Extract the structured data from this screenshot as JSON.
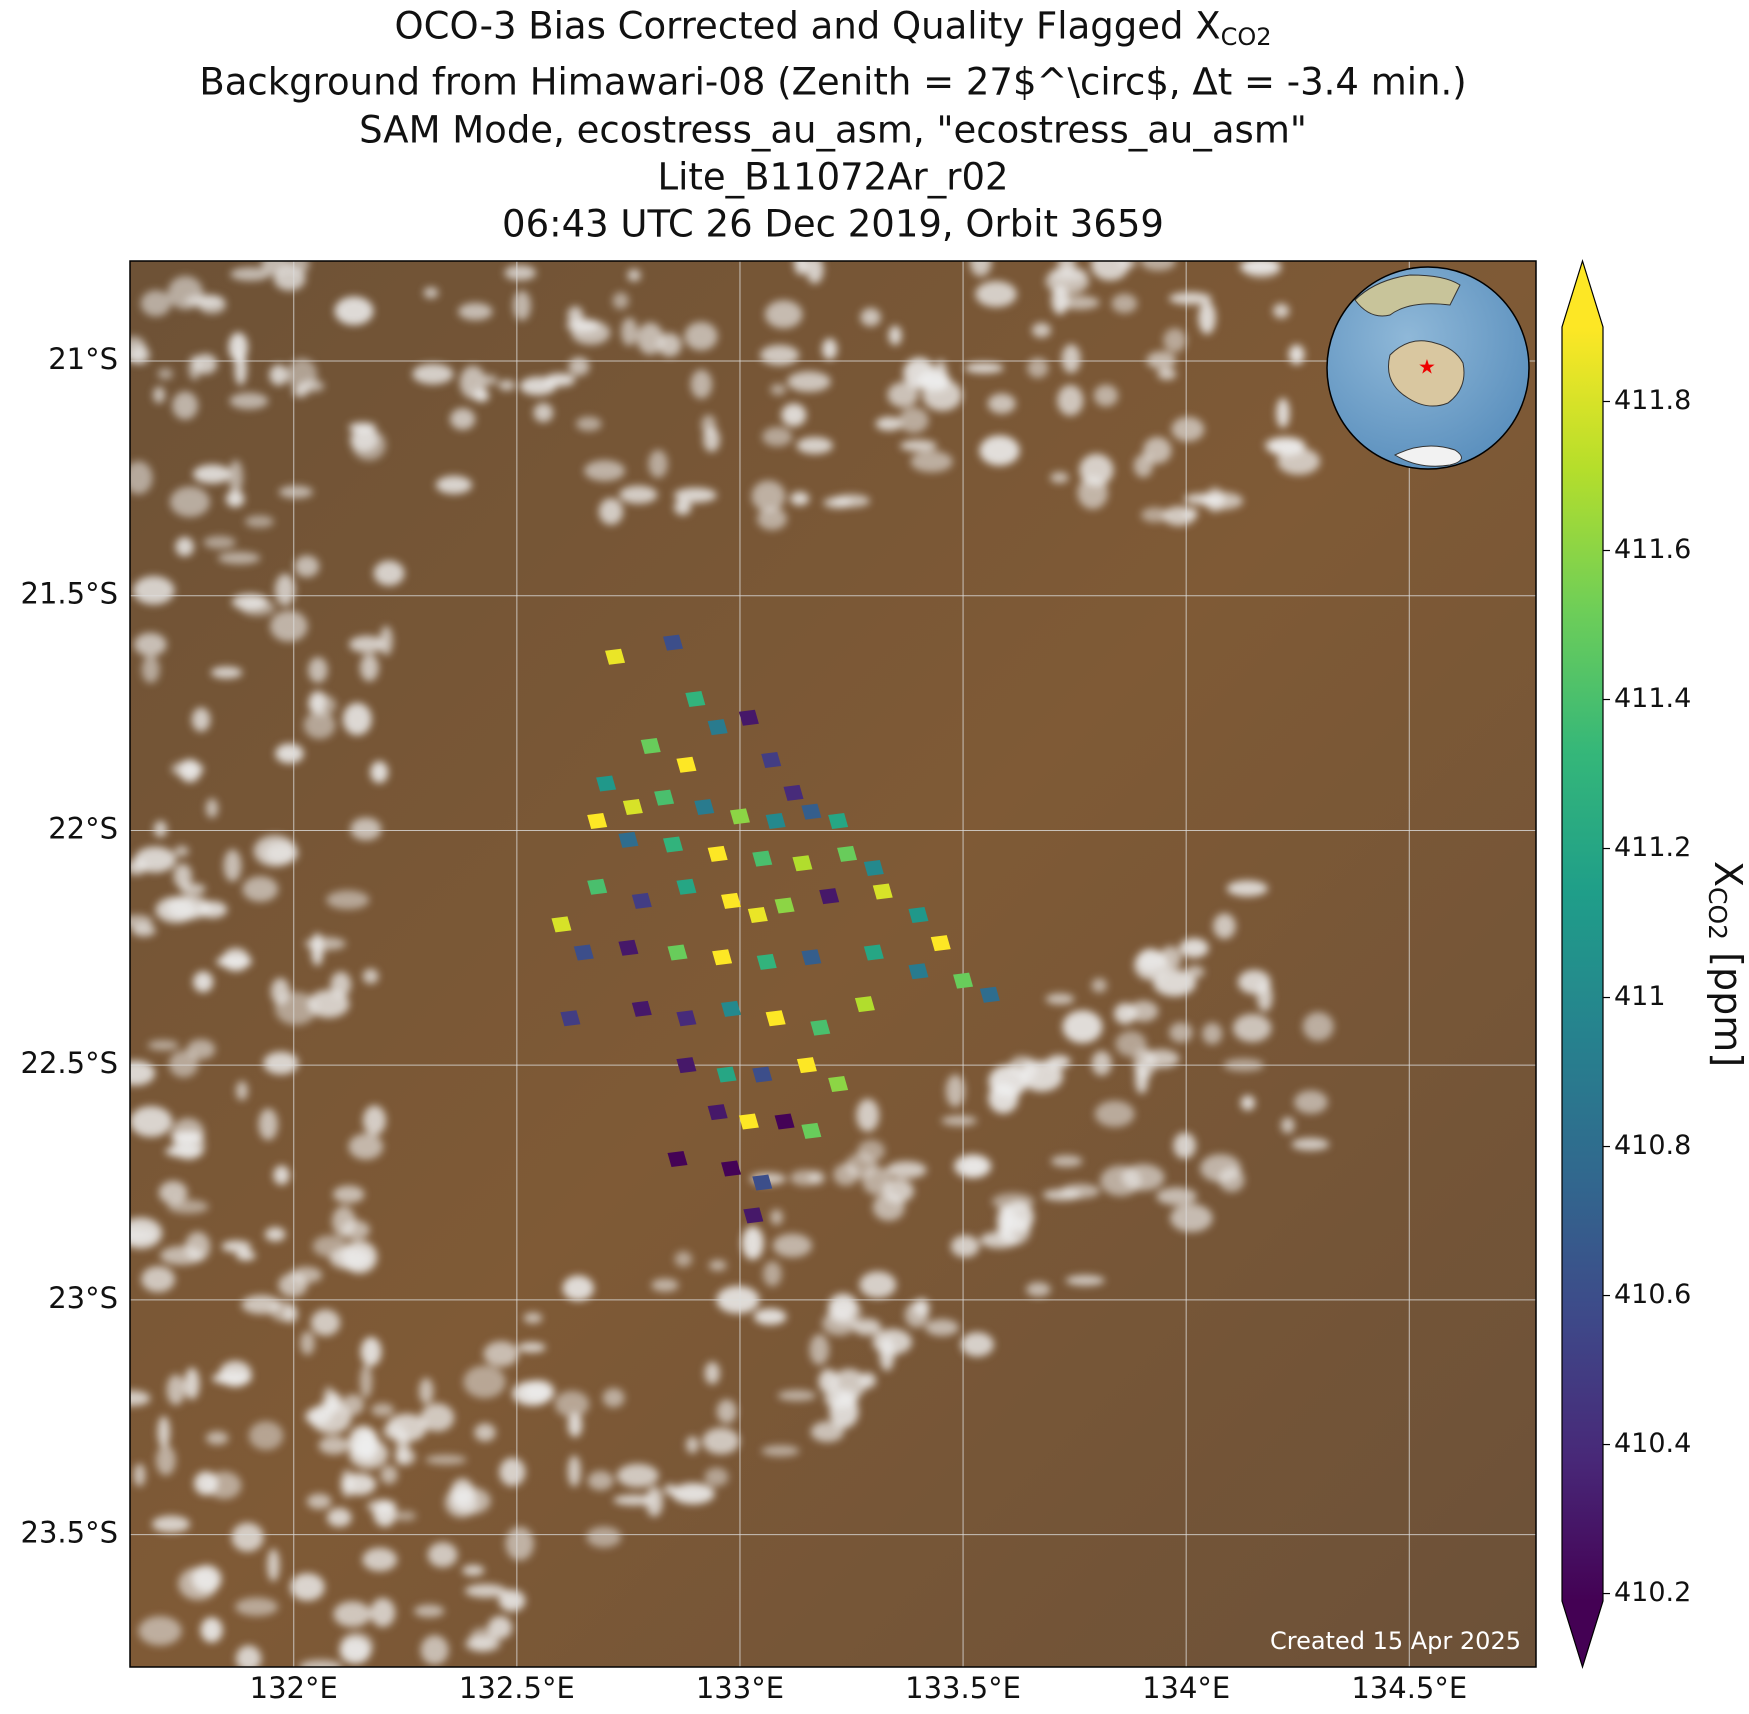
{
  "chart_data": {
    "type": "map",
    "title_lines": [
      "OCO-3 Bias Corrected and Quality Flagged X",
      "Background from Himawari-08 (Zenith = 27$^\\circ$, Δt = -3.4 min.)",
      "SAM Mode, ecostress_au_asm, \"ecostress_au_asm\"",
      "Lite_B11072Ar_r02",
      "06:43 UTC 26 Dec 2019, Orbit 3659"
    ],
    "title_subscript": "CO2",
    "xlim": [
      131.633,
      134.784
    ],
    "ylim": [
      -20.787,
      -23.782
    ],
    "xticks": [
      {
        "value": 132,
        "label": "132°E"
      },
      {
        "value": 132.5,
        "label": "132.5°E"
      },
      {
        "value": 133,
        "label": "133°E"
      },
      {
        "value": 133.5,
        "label": "133.5°E"
      },
      {
        "value": 134,
        "label": "134°E"
      },
      {
        "value": 134.5,
        "label": "134.5°E"
      }
    ],
    "yticks": [
      {
        "value": -21,
        "label": "21°S"
      },
      {
        "value": -21.5,
        "label": "21.5°S"
      },
      {
        "value": -22,
        "label": "22°S"
      },
      {
        "value": -22.5,
        "label": "22.5°S"
      },
      {
        "value": -23,
        "label": "23°S"
      },
      {
        "value": -23.5,
        "label": "23.5°S"
      }
    ],
    "grid": true,
    "colormap": "viridis",
    "clim": [
      410.19,
      411.9
    ],
    "cticks": [
      410.2,
      410.4,
      410.6,
      410.8,
      411.0,
      411.2,
      411.4,
      411.6,
      411.8
    ],
    "cbar_label": {
      "main": "X",
      "sub": "CO2",
      "unit": "[ppm]"
    },
    "credit": "Created 15 Apr 2025",
    "soundings": {
      "lon": [
        132.72,
        132.85,
        132.9,
        132.95,
        132.8,
        132.88,
        133.02,
        133.07,
        133.12,
        132.7,
        132.76,
        132.83,
        132.92,
        133.0,
        133.08,
        133.16,
        133.22,
        132.68,
        132.75,
        132.85,
        132.95,
        133.05,
        133.14,
        133.24,
        133.3,
        132.68,
        132.78,
        132.88,
        132.98,
        133.04,
        133.1,
        133.2,
        133.32,
        133.4,
        133.45,
        132.6,
        132.65,
        132.75,
        132.86,
        132.96,
        133.06,
        133.16,
        133.3,
        133.4,
        133.5,
        133.56,
        132.62,
        132.78,
        132.88,
        132.98,
        133.08,
        133.18,
        133.28,
        132.88,
        132.97,
        133.05,
        133.15,
        133.22,
        132.95,
        133.02,
        133.1,
        133.16,
        132.98,
        133.05,
        133.03,
        132.86
      ],
      "lat": [
        -21.63,
        -21.6,
        -21.72,
        -21.78,
        -21.82,
        -21.86,
        -21.76,
        -21.85,
        -21.92,
        -21.9,
        -21.95,
        -21.93,
        -21.95,
        -21.97,
        -21.98,
        -21.96,
        -21.98,
        -21.98,
        -22.02,
        -22.03,
        -22.05,
        -22.06,
        -22.07,
        -22.05,
        -22.08,
        -22.12,
        -22.15,
        -22.12,
        -22.15,
        -22.18,
        -22.16,
        -22.14,
        -22.13,
        -22.18,
        -22.24,
        -22.2,
        -22.26,
        -22.25,
        -22.26,
        -22.27,
        -22.28,
        -22.27,
        -22.26,
        -22.3,
        -22.32,
        -22.35,
        -22.4,
        -22.38,
        -22.4,
        -22.38,
        -22.4,
        -22.42,
        -22.37,
        -22.5,
        -22.52,
        -22.52,
        -22.5,
        -22.54,
        -22.6,
        -22.62,
        -22.62,
        -22.64,
        -22.72,
        -22.75,
        -22.82,
        -22.7
      ],
      "xco2": [
        411.85,
        410.6,
        411.3,
        410.9,
        411.5,
        411.9,
        410.3,
        410.5,
        410.4,
        411.1,
        411.8,
        411.4,
        410.9,
        411.6,
        411.0,
        410.7,
        411.2,
        411.9,
        410.8,
        411.3,
        411.9,
        411.4,
        411.7,
        411.5,
        411.0,
        411.4,
        410.5,
        411.2,
        411.9,
        411.85,
        411.6,
        410.3,
        411.8,
        411.1,
        411.9,
        411.8,
        410.6,
        410.3,
        411.5,
        411.9,
        411.3,
        410.7,
        411.2,
        410.9,
        411.5,
        410.8,
        410.5,
        410.3,
        410.4,
        411.0,
        411.9,
        411.4,
        411.7,
        410.3,
        411.2,
        410.6,
        411.9,
        411.6,
        410.3,
        411.9,
        410.2,
        411.5,
        410.2,
        410.6,
        410.3,
        410.2
      ]
    }
  }
}
